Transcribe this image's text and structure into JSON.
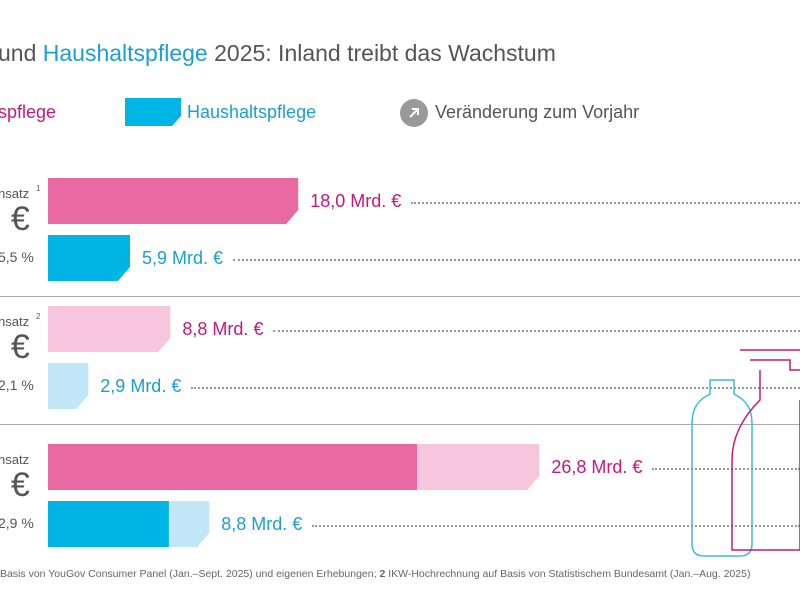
{
  "title": {
    "part1": "und ",
    "highlight": "Haushaltspflege",
    "part2": " 2025: Inland treibt das Wachstum"
  },
  "legend": [
    {
      "label": "spflege",
      "color": "#e96aa3"
    },
    {
      "label": "Haushaltspflege",
      "color": "#00b4e6"
    },
    {
      "label": "Veränderung zum Vorjahr",
      "icon": "arrow-up-right-icon",
      "color": "#999999"
    }
  ],
  "chart_data": {
    "type": "bar",
    "orientation": "horizontal",
    "groups": [
      {
        "label": "nsatz",
        "sup": "1",
        "big": ". €",
        "change": "5,5 %",
        "bars": [
          {
            "series": "pflege",
            "segments": [
              {
                "value": 18.0,
                "color": "#e96aa3"
              }
            ],
            "label": "18,0 Mrd. €"
          },
          {
            "series": "Haushaltspflege",
            "segments": [
              {
                "value": 5.9,
                "color": "#00b4e6"
              }
            ],
            "label": "5,9 Mrd. €"
          }
        ]
      },
      {
        "label": "nsatz",
        "sup": "2",
        "big": ". €",
        "change": "2,1 %",
        "bars": [
          {
            "series": "pflege",
            "segments": [
              {
                "value": 8.8,
                "color": "#f7c6dd"
              }
            ],
            "label": "8,8 Mrd. €"
          },
          {
            "series": "Haushaltspflege",
            "segments": [
              {
                "value": 2.9,
                "color": "#c0e6f8"
              }
            ],
            "label": "2,9 Mrd. €"
          }
        ]
      },
      {
        "label": "nsatz",
        "sup": "",
        "big": ". €",
        "change": "2,9 %",
        "bars": [
          {
            "series": "pflege",
            "segments": [
              {
                "value": 18.0,
                "color": "#e96aa3"
              },
              {
                "value": 8.8,
                "color": "#f7c6dd"
              }
            ],
            "label": "26,8 Mrd. €"
          },
          {
            "series": "Haushaltspflege",
            "segments": [
              {
                "value": 5.9,
                "color": "#00b4e6"
              },
              {
                "value": 2.9,
                "color": "#c0e6f8"
              }
            ],
            "label": "8,8 Mrd. €"
          }
        ]
      }
    ]
  },
  "footnote": {
    "text1": "Basis von YouGov Consumer Panel (Jan.–Sept. 2025) und eigenen Erhebungen; ",
    "num": "2",
    "text2": " IKW-Hochrechnung auf Basis von Statistischem Bundesamt (Jan.–Aug. 2025)"
  }
}
